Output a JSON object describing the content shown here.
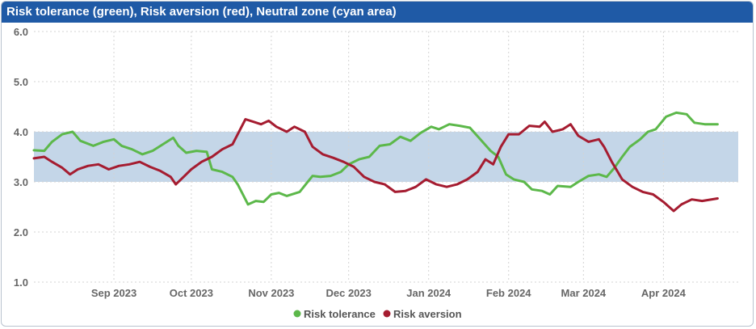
{
  "chart_data": {
    "type": "line",
    "title": "Risk tolerance (green), Risk aversion (red), Neutral zone (cyan area)",
    "ylim": [
      1.0,
      6.0
    ],
    "yticks": [
      "1.0",
      "2.0",
      "3.0",
      "4.0",
      "5.0",
      "6.0"
    ],
    "xlim": [
      "2023-08-01",
      "2024-04-30"
    ],
    "xticks": [
      {
        "date": "2023-09-01",
        "label": "Sep 2023"
      },
      {
        "date": "2023-10-01",
        "label": "Oct 2023"
      },
      {
        "date": "2023-11-01",
        "label": "Nov 2023"
      },
      {
        "date": "2023-12-01",
        "label": "Dec 2023"
      },
      {
        "date": "2024-01-01",
        "label": "Jan 2024"
      },
      {
        "date": "2024-02-01",
        "label": "Feb 2024"
      },
      {
        "date": "2024-03-01",
        "label": "Mar 2024"
      },
      {
        "date": "2024-04-01",
        "label": "Apr 2024"
      }
    ],
    "grid": true,
    "legend": "bottom",
    "band": {
      "from": 3.0,
      "to": 4.0,
      "color": "#c4d6e8"
    },
    "series": [
      {
        "name": "Risk tolerance",
        "color": "#5cb84a",
        "points": [
          [
            "2023-08-01",
            3.63
          ],
          [
            "2023-08-05",
            3.62
          ],
          [
            "2023-08-08",
            3.8
          ],
          [
            "2023-08-12",
            3.95
          ],
          [
            "2023-08-16",
            4.0
          ],
          [
            "2023-08-19",
            3.82
          ],
          [
            "2023-08-24",
            3.72
          ],
          [
            "2023-08-28",
            3.8
          ],
          [
            "2023-09-01",
            3.85
          ],
          [
            "2023-09-04",
            3.72
          ],
          [
            "2023-09-08",
            3.65
          ],
          [
            "2023-09-12",
            3.55
          ],
          [
            "2023-09-16",
            3.62
          ],
          [
            "2023-09-20",
            3.75
          ],
          [
            "2023-09-24",
            3.88
          ],
          [
            "2023-09-26",
            3.72
          ],
          [
            "2023-09-29",
            3.58
          ],
          [
            "2023-10-03",
            3.62
          ],
          [
            "2023-10-07",
            3.6
          ],
          [
            "2023-10-09",
            3.25
          ],
          [
            "2023-10-13",
            3.2
          ],
          [
            "2023-10-17",
            3.1
          ],
          [
            "2023-10-19",
            2.95
          ],
          [
            "2023-10-23",
            2.55
          ],
          [
            "2023-10-26",
            2.62
          ],
          [
            "2023-10-29",
            2.6
          ],
          [
            "2023-11-01",
            2.75
          ],
          [
            "2023-11-04",
            2.78
          ],
          [
            "2023-11-07",
            2.72
          ],
          [
            "2023-11-12",
            2.8
          ],
          [
            "2023-11-17",
            3.12
          ],
          [
            "2023-11-20",
            3.1
          ],
          [
            "2023-11-24",
            3.12
          ],
          [
            "2023-11-28",
            3.2
          ],
          [
            "2023-12-01",
            3.35
          ],
          [
            "2023-12-05",
            3.45
          ],
          [
            "2023-12-09",
            3.5
          ],
          [
            "2023-12-13",
            3.72
          ],
          [
            "2023-12-17",
            3.75
          ],
          [
            "2023-12-21",
            3.9
          ],
          [
            "2023-12-25",
            3.82
          ],
          [
            "2023-12-29",
            3.98
          ],
          [
            "2024-01-02",
            4.1
          ],
          [
            "2024-01-05",
            4.05
          ],
          [
            "2024-01-09",
            4.15
          ],
          [
            "2024-01-13",
            4.12
          ],
          [
            "2024-01-17",
            4.08
          ],
          [
            "2024-01-21",
            3.85
          ],
          [
            "2024-01-25",
            3.62
          ],
          [
            "2024-01-28",
            3.5
          ],
          [
            "2024-01-31",
            3.15
          ],
          [
            "2024-02-03",
            3.05
          ],
          [
            "2024-02-07",
            3.0
          ],
          [
            "2024-02-10",
            2.85
          ],
          [
            "2024-02-14",
            2.82
          ],
          [
            "2024-02-17",
            2.75
          ],
          [
            "2024-02-20",
            2.92
          ],
          [
            "2024-02-25",
            2.9
          ],
          [
            "2024-02-28",
            3.0
          ],
          [
            "2024-03-03",
            3.12
          ],
          [
            "2024-03-07",
            3.15
          ],
          [
            "2024-03-10",
            3.1
          ],
          [
            "2024-03-13",
            3.28
          ],
          [
            "2024-03-16",
            3.5
          ],
          [
            "2024-03-19",
            3.7
          ],
          [
            "2024-03-23",
            3.85
          ],
          [
            "2024-03-26",
            4.0
          ],
          [
            "2024-03-29",
            4.05
          ],
          [
            "2024-04-02",
            4.3
          ],
          [
            "2024-04-06",
            4.38
          ],
          [
            "2024-04-10",
            4.35
          ],
          [
            "2024-04-13",
            4.18
          ],
          [
            "2024-04-17",
            4.15
          ],
          [
            "2024-04-22",
            4.15
          ]
        ]
      },
      {
        "name": "Risk aversion",
        "color": "#a51c30",
        "points": [
          [
            "2023-08-01",
            3.47
          ],
          [
            "2023-08-05",
            3.5
          ],
          [
            "2023-08-08",
            3.4
          ],
          [
            "2023-08-12",
            3.28
          ],
          [
            "2023-08-15",
            3.15
          ],
          [
            "2023-08-18",
            3.25
          ],
          [
            "2023-08-22",
            3.32
          ],
          [
            "2023-08-26",
            3.35
          ],
          [
            "2023-08-30",
            3.25
          ],
          [
            "2023-09-03",
            3.32
          ],
          [
            "2023-09-07",
            3.35
          ],
          [
            "2023-09-11",
            3.4
          ],
          [
            "2023-09-15",
            3.3
          ],
          [
            "2023-09-19",
            3.22
          ],
          [
            "2023-09-23",
            3.1
          ],
          [
            "2023-09-25",
            2.95
          ],
          [
            "2023-09-28",
            3.1
          ],
          [
            "2023-10-01",
            3.25
          ],
          [
            "2023-10-05",
            3.4
          ],
          [
            "2023-10-09",
            3.5
          ],
          [
            "2023-10-13",
            3.65
          ],
          [
            "2023-10-17",
            3.75
          ],
          [
            "2023-10-19",
            3.95
          ],
          [
            "2023-10-22",
            4.25
          ],
          [
            "2023-10-25",
            4.2
          ],
          [
            "2023-10-28",
            4.15
          ],
          [
            "2023-10-31",
            4.22
          ],
          [
            "2023-11-03",
            4.1
          ],
          [
            "2023-11-07",
            4.0
          ],
          [
            "2023-11-10",
            4.1
          ],
          [
            "2023-11-14",
            4.0
          ],
          [
            "2023-11-17",
            3.7
          ],
          [
            "2023-11-21",
            3.55
          ],
          [
            "2023-11-25",
            3.48
          ],
          [
            "2023-11-29",
            3.4
          ],
          [
            "2023-12-03",
            3.3
          ],
          [
            "2023-12-07",
            3.1
          ],
          [
            "2023-12-11",
            3.0
          ],
          [
            "2023-12-15",
            2.95
          ],
          [
            "2023-12-19",
            2.8
          ],
          [
            "2023-12-23",
            2.82
          ],
          [
            "2023-12-27",
            2.9
          ],
          [
            "2023-12-31",
            3.05
          ],
          [
            "2024-01-04",
            2.95
          ],
          [
            "2024-01-08",
            2.9
          ],
          [
            "2024-01-12",
            2.95
          ],
          [
            "2024-01-16",
            3.05
          ],
          [
            "2024-01-20",
            3.2
          ],
          [
            "2024-01-23",
            3.45
          ],
          [
            "2024-01-26",
            3.35
          ],
          [
            "2024-01-29",
            3.7
          ],
          [
            "2024-02-01",
            3.95
          ],
          [
            "2024-02-05",
            3.95
          ],
          [
            "2024-02-09",
            4.12
          ],
          [
            "2024-02-13",
            4.1
          ],
          [
            "2024-02-15",
            4.2
          ],
          [
            "2024-02-18",
            4.0
          ],
          [
            "2024-02-22",
            4.05
          ],
          [
            "2024-02-25",
            4.15
          ],
          [
            "2024-02-28",
            3.92
          ],
          [
            "2024-03-03",
            3.8
          ],
          [
            "2024-03-07",
            3.85
          ],
          [
            "2024-03-09",
            3.7
          ],
          [
            "2024-03-12",
            3.4
          ],
          [
            "2024-03-16",
            3.05
          ],
          [
            "2024-03-20",
            2.9
          ],
          [
            "2024-03-24",
            2.8
          ],
          [
            "2024-03-28",
            2.75
          ],
          [
            "2024-04-01",
            2.6
          ],
          [
            "2024-04-05",
            2.42
          ],
          [
            "2024-04-08",
            2.55
          ],
          [
            "2024-04-12",
            2.65
          ],
          [
            "2024-04-16",
            2.62
          ],
          [
            "2024-04-22",
            2.67
          ]
        ]
      }
    ]
  }
}
